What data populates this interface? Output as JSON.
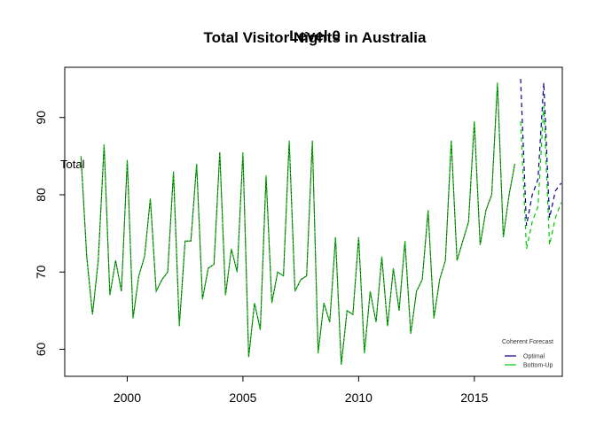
{
  "chart_data": {
    "type": "line",
    "title": "Total Visitor Nights in Australia",
    "overlay_title": "Level 0",
    "series_tag": "Total",
    "xlim": [
      1997.3,
      2018.8
    ],
    "ylim": [
      56.5,
      96.5
    ],
    "x_ticks": [
      2000,
      2005,
      2010,
      2015
    ],
    "y_ticks": [
      60,
      70,
      80,
      90
    ],
    "legend": {
      "title": "Coherent Forecast",
      "position": "bottom-right",
      "entries": [
        {
          "label": "Optimal",
          "color": "#00008b"
        },
        {
          "label": "Bottom-Up",
          "color": "#00cc00"
        }
      ]
    },
    "history": {
      "color": "#00cc00",
      "overlay_color": "#000000",
      "start_year": 1998,
      "start_quarter": 1,
      "quarterly_values": [
        [
          85.0,
          72.0,
          64.5,
          71.5
        ],
        [
          86.5,
          67.0,
          71.5,
          67.5
        ],
        [
          84.5,
          64.0,
          69.5,
          72.0
        ],
        [
          79.5,
          67.5,
          69.0,
          70.0
        ],
        [
          83.0,
          63.0,
          74.0,
          74.0
        ],
        [
          84.0,
          66.5,
          70.5,
          71.0
        ],
        [
          85.5,
          67.0,
          73.0,
          70.0
        ],
        [
          85.5,
          59.0,
          66.0,
          62.5
        ],
        [
          82.5,
          66.0,
          70.0,
          69.5
        ],
        [
          87.0,
          67.5,
          69.0,
          69.5
        ],
        [
          87.0,
          59.5,
          66.0,
          63.5
        ],
        [
          74.5,
          58.0,
          65.0,
          64.5
        ],
        [
          74.5,
          59.5,
          67.5,
          63.5
        ],
        [
          72.0,
          63.0,
          70.5,
          65.0
        ],
        [
          74.0,
          62.0,
          67.5,
          69.0
        ],
        [
          78.0,
          64.0,
          69.0,
          71.5
        ],
        [
          87.0,
          71.5,
          74.0,
          76.5
        ],
        [
          89.5,
          73.5,
          78.0,
          80.0
        ],
        [
          94.5,
          74.5,
          80.0,
          84.0
        ]
      ]
    },
    "forecast": {
      "start_year": 2017,
      "start_quarter": 1,
      "series": [
        {
          "name": "Optimal",
          "color": "#00008b",
          "values": [
            95.0,
            76.0,
            80.0,
            82.0,
            94.5,
            77.0,
            80.5,
            81.5
          ]
        },
        {
          "name": "Bottom-Up",
          "color": "#00cc00",
          "values": [
            89.5,
            73.0,
            76.5,
            78.5,
            91.5,
            73.5,
            77.0,
            79.0
          ]
        }
      ]
    }
  }
}
